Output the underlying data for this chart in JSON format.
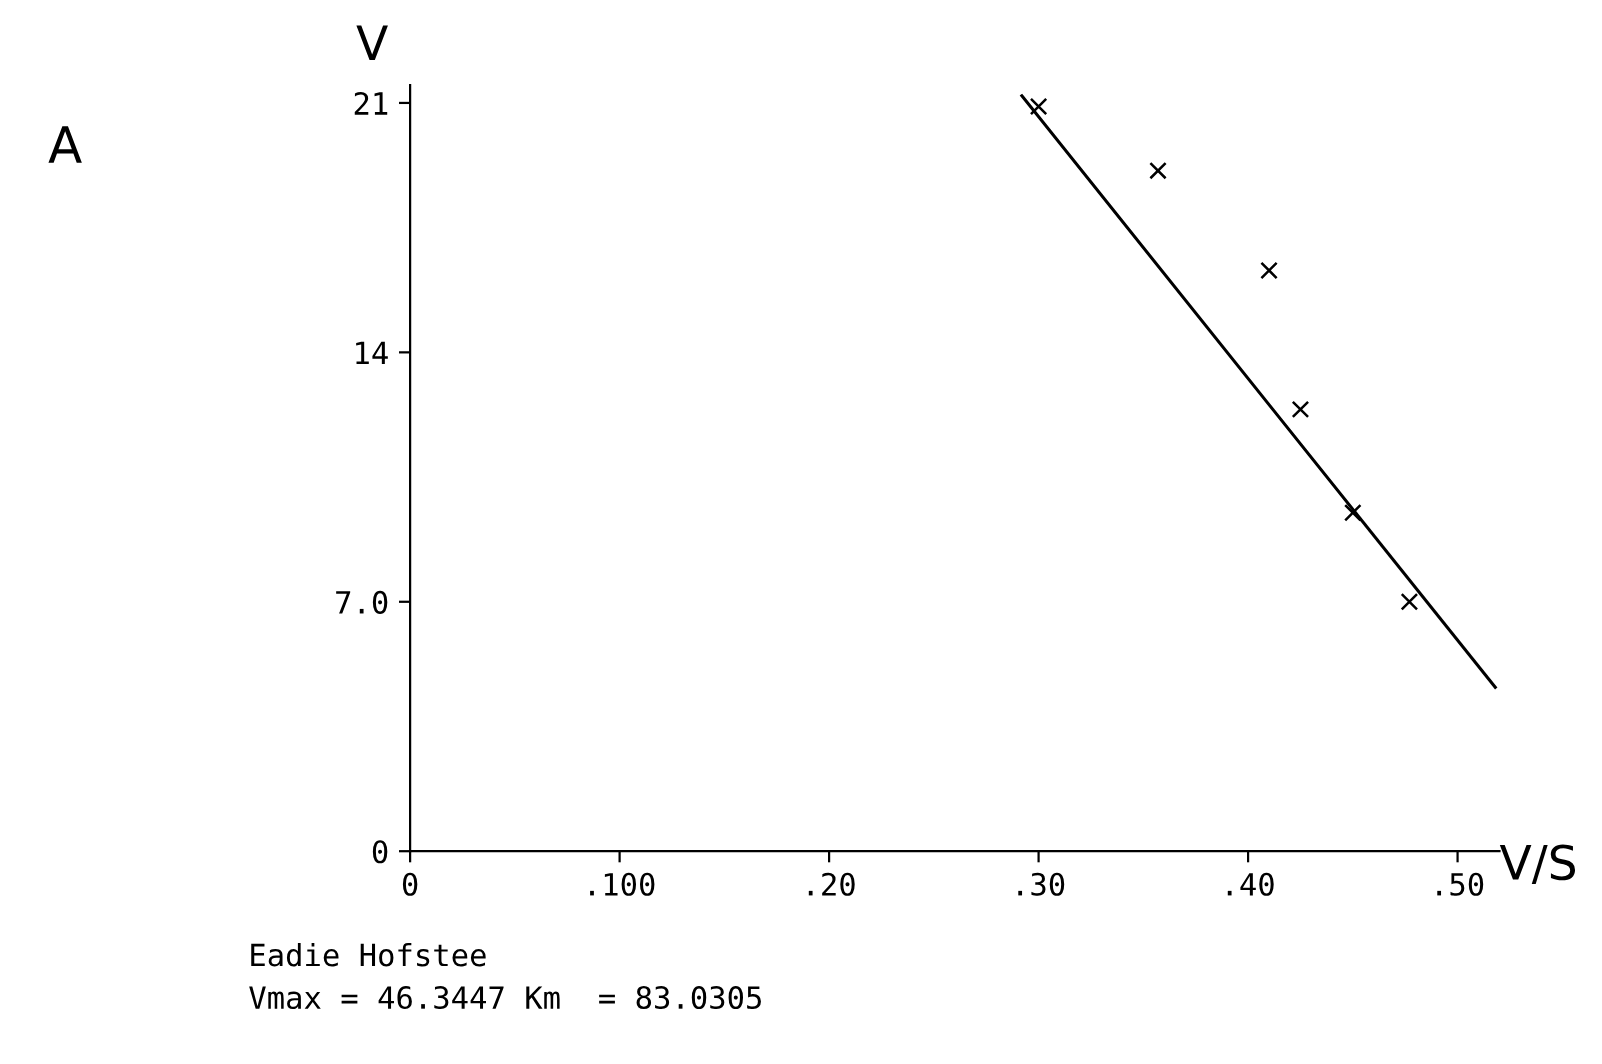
{
  "chart_data": {
    "type": "scatter",
    "title": "A",
    "xlabel": "V/S",
    "ylabel": "V",
    "series": [
      {
        "color": "#000000",
        "marker": "cross",
        "x": [
          0.3,
          0.357,
          0.41,
          0.425,
          0.45,
          0.477
        ],
        "values": [
          20.9,
          19.1,
          16.3,
          12.4,
          9.5,
          7.0
        ]
      },
      {
        "type": "line",
        "color": "#000000",
        "line_style": "solid",
        "x": [
          0.292,
          0.518
        ],
        "values": [
          21.2,
          4.6
        ]
      }
    ],
    "xlim": [
      0,
      0.52
    ],
    "ylim": [
      0,
      21.5
    ],
    "xticks": [
      0,
      {
        "value": 0.1,
        "label": ".100"
      },
      {
        "value": 0.2,
        "label": ".20"
      },
      {
        "value": 0.3,
        "label": ".30"
      },
      {
        "value": 0.4,
        "label": ".40"
      },
      {
        "value": 0.5,
        "label": ".50"
      }
    ],
    "yticks": [
      0,
      {
        "value": 7,
        "label": "7.0"
      },
      14,
      21
    ],
    "grid": false,
    "annotations": [
      "Eadie Hofstee",
      "Vmax = 46.3447 Km  = 83.0305"
    ]
  }
}
